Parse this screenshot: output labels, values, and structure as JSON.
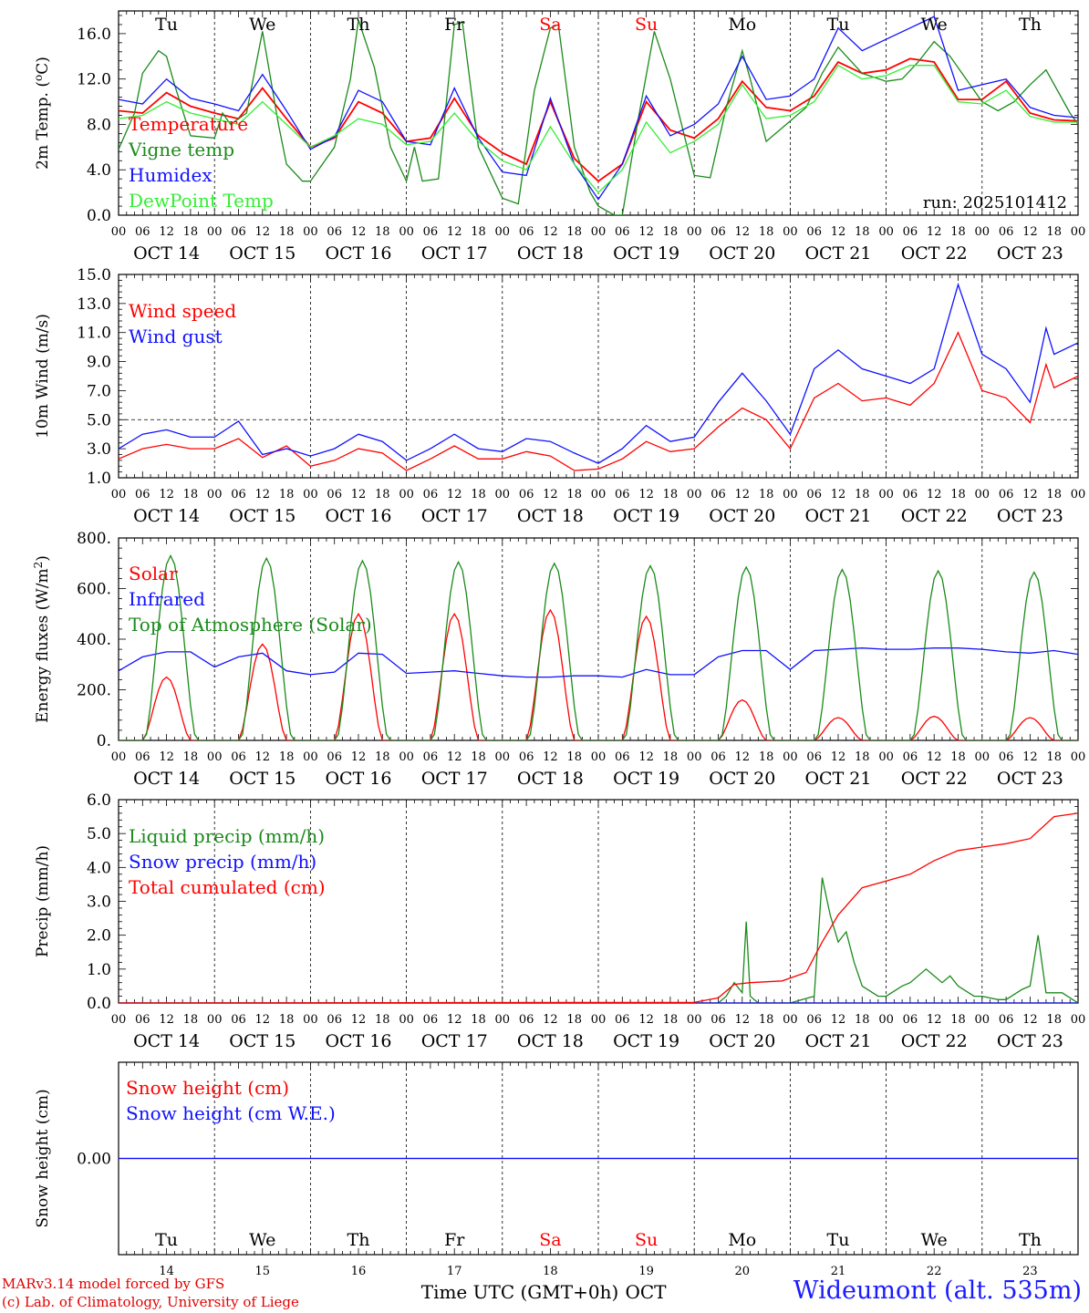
{
  "run_label": "run: 2025101412",
  "colors": {
    "red": "#ff0000",
    "green": "#1a8a1a",
    "blue": "#1010ff",
    "lightgreen": "#33ee33",
    "black": "#000000"
  },
  "days": [
    {
      "abbr": "Tu",
      "date": "OCT 14",
      "num": "14",
      "weekend": false
    },
    {
      "abbr": "We",
      "date": "OCT 15",
      "num": "15",
      "weekend": false
    },
    {
      "abbr": "Th",
      "date": "OCT 16",
      "num": "16",
      "weekend": false
    },
    {
      "abbr": "Fr",
      "date": "OCT 17",
      "num": "17",
      "weekend": false
    },
    {
      "abbr": "Sa",
      "date": "OCT 18",
      "num": "18",
      "weekend": true
    },
    {
      "abbr": "Su",
      "date": "OCT 19",
      "num": "19",
      "weekend": true
    },
    {
      "abbr": "Mo",
      "date": "OCT 20",
      "num": "20",
      "weekend": false
    },
    {
      "abbr": "Tu",
      "date": "OCT 21",
      "num": "21",
      "weekend": false
    },
    {
      "abbr": "We",
      "date": "OCT 22",
      "num": "22",
      "weekend": false
    },
    {
      "abbr": "Th",
      "date": "OCT 23",
      "num": "23",
      "weekend": false
    }
  ],
  "hour_ticks": [
    "00",
    "06",
    "12",
    "18"
  ],
  "final_tick": "00",
  "chart_data": [
    {
      "type": "line",
      "id": "temp",
      "ylabel": "2m Temp. (oC)",
      "ylim": [
        0,
        18
      ],
      "yticks": [
        "0.0",
        "4.0",
        "8.0",
        "12.0",
        "16.0"
      ],
      "ytick_values": [
        0,
        4,
        8,
        12,
        16
      ],
      "x_unit": "hours since Oct 14 00 UTC",
      "series": [
        {
          "name": "Temperature",
          "color": "#ff0000",
          "x": [
            0,
            6,
            12,
            18,
            24,
            30,
            36,
            42,
            48,
            54,
            60,
            66,
            72,
            78,
            84,
            90,
            96,
            102,
            108,
            114,
            120,
            126,
            132,
            138,
            144,
            150,
            156,
            162,
            168,
            174,
            180,
            186,
            192,
            198,
            204,
            210,
            216,
            222,
            228,
            234,
            240
          ],
          "values": [
            9.2,
            9.0,
            10.8,
            9.6,
            9.0,
            8.5,
            11.2,
            8.5,
            6.0,
            6.8,
            10.0,
            9.0,
            6.5,
            6.8,
            10.3,
            7.0,
            5.5,
            4.5,
            10.0,
            5.0,
            3.0,
            4.5,
            10.0,
            7.5,
            6.8,
            8.5,
            11.8,
            9.5,
            9.2,
            10.5,
            13.5,
            12.5,
            12.8,
            13.8,
            13.5,
            10.2,
            10.2,
            11.8,
            9.0,
            8.4,
            8.3
          ]
        },
        {
          "name": "Vigne temp",
          "color": "#1a8a1a",
          "x": [
            0,
            4,
            6,
            10,
            12,
            14,
            18,
            24,
            26,
            28,
            32,
            36,
            40,
            42,
            46,
            48,
            54,
            58,
            60,
            64,
            68,
            72,
            74,
            76,
            80,
            84,
            86,
            90,
            96,
            100,
            104,
            108,
            110,
            114,
            118,
            120,
            124,
            126,
            130,
            134,
            138,
            144,
            148,
            152,
            156,
            158,
            162,
            168,
            172,
            176,
            180,
            186,
            192,
            196,
            200,
            204,
            208,
            212,
            216,
            220,
            224,
            228,
            232,
            238,
            240
          ],
          "values": [
            5.8,
            9.0,
            12.5,
            14.5,
            14.0,
            11.5,
            7.0,
            6.8,
            9.0,
            8.0,
            9.0,
            16.2,
            8.0,
            4.5,
            3.0,
            3.0,
            6.0,
            12.0,
            17.2,
            13.0,
            6.0,
            3.0,
            6.0,
            3.0,
            3.2,
            16.8,
            17.0,
            6.0,
            1.5,
            1.0,
            11.0,
            16.5,
            16.8,
            6.0,
            2.0,
            0.8,
            0.0,
            0.0,
            8.5,
            16.2,
            12.0,
            3.5,
            3.3,
            9.5,
            14.5,
            12.0,
            6.5,
            8.3,
            9.5,
            12.5,
            14.8,
            12.5,
            11.8,
            12.0,
            13.5,
            15.3,
            14.0,
            12.0,
            10.0,
            9.2,
            10.0,
            11.5,
            12.8,
            9.0,
            8.0
          ]
        },
        {
          "name": "Humidex",
          "color": "#1010ff",
          "x": [
            0,
            6,
            12,
            18,
            24,
            30,
            36,
            42,
            48,
            54,
            60,
            66,
            72,
            78,
            84,
            90,
            96,
            102,
            108,
            114,
            120,
            126,
            132,
            138,
            144,
            150,
            156,
            162,
            168,
            174,
            180,
            186,
            192,
            198,
            204,
            210,
            216,
            222,
            228,
            234,
            240
          ],
          "values": [
            10.2,
            9.8,
            12.0,
            10.3,
            9.8,
            9.2,
            12.4,
            9.2,
            5.8,
            6.9,
            11.0,
            10.0,
            6.5,
            6.2,
            11.2,
            6.8,
            3.8,
            3.5,
            10.3,
            4.5,
            1.4,
            4.5,
            10.5,
            7.0,
            8.0,
            9.8,
            14.0,
            10.2,
            10.5,
            12.0,
            16.5,
            14.5,
            15.5,
            16.5,
            17.5,
            11.0,
            11.5,
            12.0,
            9.5,
            8.8,
            8.6
          ]
        },
        {
          "name": "DewPoint Temp",
          "color": "#33ee33",
          "x": [
            0,
            6,
            12,
            18,
            24,
            30,
            36,
            42,
            48,
            54,
            60,
            66,
            72,
            78,
            84,
            90,
            96,
            102,
            108,
            114,
            120,
            126,
            132,
            138,
            144,
            150,
            156,
            162,
            168,
            174,
            180,
            186,
            192,
            198,
            204,
            210,
            216,
            222,
            228,
            234,
            240
          ],
          "values": [
            8.5,
            8.8,
            10.0,
            9.0,
            8.5,
            8.0,
            10.0,
            8.0,
            6.0,
            7.0,
            8.5,
            8.0,
            6.2,
            6.5,
            9.0,
            6.5,
            4.8,
            4.0,
            7.8,
            4.5,
            2.0,
            4.0,
            8.2,
            5.5,
            6.5,
            8.0,
            11.5,
            8.5,
            8.8,
            10.0,
            13.2,
            12.0,
            12.3,
            13.2,
            13.2,
            10.0,
            9.8,
            11.0,
            8.7,
            8.2,
            8.2
          ]
        }
      ]
    },
    {
      "type": "line",
      "id": "wind",
      "ylabel": "10m Wind (m/s)",
      "ylim": [
        1,
        15
      ],
      "yticks": [
        "1.0",
        "3.0",
        "5.0",
        "7.0",
        "9.0",
        "11.0",
        "13.0",
        "15.0"
      ],
      "ytick_values": [
        1,
        3,
        5,
        7,
        9,
        11,
        13,
        15
      ],
      "dashed_ref": 5.0,
      "series": [
        {
          "name": "Wind speed",
          "color": "#ff0000",
          "x": [
            0,
            6,
            12,
            18,
            24,
            30,
            36,
            42,
            48,
            54,
            60,
            66,
            72,
            78,
            84,
            90,
            96,
            102,
            108,
            114,
            120,
            126,
            132,
            138,
            144,
            150,
            156,
            162,
            168,
            174,
            180,
            186,
            192,
            198,
            204,
            210,
            216,
            222,
            228,
            232,
            234,
            240
          ],
          "values": [
            2.3,
            3.0,
            3.3,
            3.0,
            3.0,
            3.7,
            2.4,
            3.2,
            1.8,
            2.2,
            3.0,
            2.7,
            1.5,
            2.3,
            3.2,
            2.3,
            2.3,
            2.8,
            2.5,
            1.5,
            1.6,
            2.3,
            3.5,
            2.8,
            3.0,
            4.5,
            5.8,
            5.0,
            3.0,
            6.5,
            7.5,
            6.3,
            6.5,
            6.0,
            7.5,
            11.0,
            7.0,
            6.5,
            4.8,
            8.8,
            7.2,
            8.0
          ]
        },
        {
          "name": "Wind gust",
          "color": "#1010ff",
          "x": [
            0,
            6,
            12,
            18,
            24,
            30,
            36,
            42,
            48,
            54,
            60,
            66,
            72,
            78,
            84,
            90,
            96,
            102,
            108,
            114,
            120,
            126,
            132,
            138,
            144,
            150,
            156,
            162,
            168,
            174,
            180,
            186,
            192,
            198,
            204,
            210,
            216,
            222,
            228,
            232,
            234,
            240
          ],
          "values": [
            3.0,
            4.0,
            4.3,
            3.8,
            3.8,
            4.9,
            2.6,
            3.0,
            2.5,
            3.0,
            4.0,
            3.5,
            2.2,
            3.0,
            4.0,
            3.0,
            2.8,
            3.7,
            3.5,
            2.7,
            2.0,
            3.0,
            4.6,
            3.5,
            3.8,
            6.2,
            8.2,
            6.3,
            4.0,
            8.5,
            9.8,
            8.5,
            8.0,
            7.5,
            8.5,
            14.3,
            9.5,
            8.5,
            6.2,
            11.3,
            9.5,
            10.3
          ]
        }
      ]
    },
    {
      "type": "line",
      "id": "energy",
      "ylabel": "Energy fluxes (W/m2)",
      "ylim": [
        0,
        800
      ],
      "yticks": [
        "0.",
        "200.",
        "400.",
        "600.",
        "800."
      ],
      "ytick_values": [
        0,
        200,
        400,
        600,
        800
      ],
      "series": [
        {
          "name": "Solar",
          "color": "#ff0000",
          "peaks": [
            {
              "x": 12,
              "v": 250
            },
            {
              "x": 36,
              "v": 380
            },
            {
              "x": 60,
              "v": 500
            },
            {
              "x": 84,
              "v": 500
            },
            {
              "x": 108,
              "v": 515
            },
            {
              "x": 132,
              "v": 490
            },
            {
              "x": 156,
              "v": 160
            },
            {
              "x": 180,
              "v": 90
            },
            {
              "x": 204,
              "v": 95
            },
            {
              "x": 228,
              "v": 90
            }
          ]
        },
        {
          "name": "Infrared",
          "color": "#1010ff",
          "x": [
            0,
            6,
            12,
            18,
            24,
            30,
            36,
            42,
            48,
            54,
            60,
            66,
            72,
            78,
            84,
            90,
            96,
            102,
            108,
            114,
            120,
            126,
            132,
            138,
            144,
            150,
            156,
            162,
            168,
            174,
            180,
            186,
            192,
            198,
            204,
            210,
            216,
            222,
            228,
            234,
            240
          ],
          "values": [
            275,
            330,
            350,
            350,
            290,
            330,
            345,
            275,
            260,
            270,
            345,
            340,
            265,
            270,
            275,
            265,
            255,
            250,
            250,
            255,
            255,
            250,
            280,
            260,
            260,
            330,
            355,
            355,
            280,
            355,
            360,
            365,
            360,
            360,
            365,
            365,
            360,
            350,
            345,
            355,
            340
          ]
        },
        {
          "name": "Top of Atmosphere (Solar)",
          "color": "#1a8a1a",
          "peaks": [
            {
              "x": 13,
              "v": 730
            },
            {
              "x": 37,
              "v": 720
            },
            {
              "x": 61,
              "v": 710
            },
            {
              "x": 85,
              "v": 705
            },
            {
              "x": 109,
              "v": 700
            },
            {
              "x": 133,
              "v": 690
            },
            {
              "x": 157,
              "v": 685
            },
            {
              "x": 181,
              "v": 675
            },
            {
              "x": 205,
              "v": 670
            },
            {
              "x": 229,
              "v": 665
            }
          ]
        }
      ]
    },
    {
      "type": "line",
      "id": "precip",
      "ylabel": "Precip (mm/h)",
      "ylim": [
        0,
        6
      ],
      "yticks": [
        "0.0",
        "1.0",
        "2.0",
        "3.0",
        "4.0",
        "5.0",
        "6.0"
      ],
      "ytick_values": [
        0,
        1,
        2,
        3,
        4,
        5,
        6
      ],
      "series": [
        {
          "name": "Liquid precip (mm/h)",
          "color": "#1a8a1a",
          "x": [
            0,
            150,
            152,
            154,
            156,
            157,
            158,
            160,
            162,
            168,
            174,
            176,
            178,
            180,
            182,
            184,
            186,
            190,
            192,
            196,
            198,
            202,
            204,
            206,
            208,
            210,
            214,
            216,
            220,
            222,
            226,
            228,
            230,
            232,
            236,
            240
          ],
          "values": [
            0,
            0,
            0.2,
            0.6,
            0.3,
            2.4,
            0.2,
            0,
            0,
            0,
            0.2,
            3.7,
            2.6,
            1.8,
            2.1,
            1.2,
            0.5,
            0.2,
            0.2,
            0.5,
            0.6,
            1.0,
            0.8,
            0.6,
            0.8,
            0.5,
            0.2,
            0.2,
            0.1,
            0.1,
            0.4,
            0.5,
            2.0,
            0.3,
            0.3,
            0
          ]
        },
        {
          "name": "Snow precip (mm/h)",
          "color": "#1010ff",
          "x": [
            0,
            240
          ],
          "values": [
            0,
            0
          ]
        },
        {
          "name": "Total cumulated (cm)",
          "color": "#ff0000",
          "x": [
            0,
            144,
            150,
            154,
            158,
            166,
            172,
            176,
            180,
            186,
            192,
            198,
            204,
            210,
            216,
            222,
            228,
            234,
            240
          ],
          "values": [
            0,
            0.02,
            0.15,
            0.55,
            0.6,
            0.65,
            0.9,
            1.8,
            2.6,
            3.4,
            3.6,
            3.8,
            4.2,
            4.5,
            4.6,
            4.7,
            4.85,
            5.5,
            5.6
          ]
        }
      ]
    },
    {
      "type": "line",
      "id": "snow",
      "ylabel": "Snow height (cm)",
      "ylim": [
        -1,
        1
      ],
      "yticks": [
        "0.00"
      ],
      "ytick_values": [
        0
      ],
      "xlabel": "Time UTC (GMT+0h)",
      "xlabel_month": "OCT",
      "series": [
        {
          "name": "Snow height (cm)",
          "color": "#ff0000",
          "x": [
            0,
            240
          ],
          "values": [
            0,
            0
          ]
        },
        {
          "name": "Snow height (cm W.E.)",
          "color": "#1010ff",
          "x": [
            0,
            240
          ],
          "values": [
            0,
            0
          ]
        }
      ]
    }
  ],
  "footer": {
    "model": "MARv3.14 model forced by GFS",
    "lab": "(c) Lab. of Climatology, University of Liege",
    "station": "Wideumont (alt. 535m)"
  }
}
